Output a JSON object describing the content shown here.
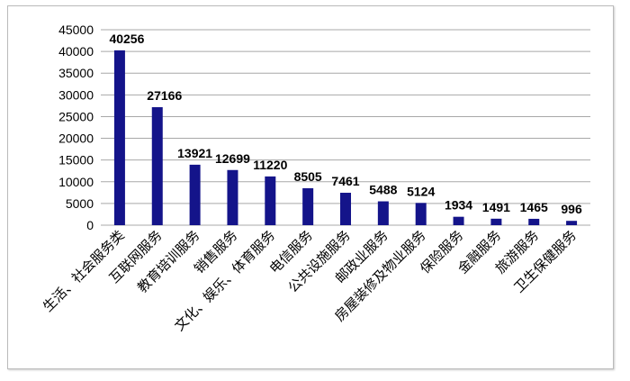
{
  "chart_data": {
    "type": "bar",
    "title": "",
    "xlabel": "",
    "ylabel": "",
    "ylim": [
      0,
      45000
    ],
    "yticks": [
      0,
      5000,
      10000,
      15000,
      20000,
      25000,
      30000,
      35000,
      40000,
      45000
    ],
    "grid": true,
    "bar_color": "#14148a",
    "categories": [
      "生活、社会服务类",
      "互联网服务",
      "教育培训服务",
      "销售服务",
      "文化、娱乐、体育服务",
      "电信服务",
      "公共设施服务",
      "邮政业服务",
      "房屋装修及物业服务",
      "保险服务",
      "金融服务",
      "旅游服务",
      "卫生保健服务"
    ],
    "values": [
      40256,
      27166,
      13921,
      12699,
      11220,
      8505,
      7461,
      5488,
      5124,
      1934,
      1491,
      1465,
      996
    ]
  }
}
